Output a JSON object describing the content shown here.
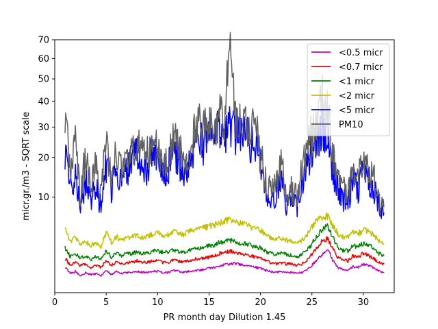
{
  "chart_data": {
    "type": "line",
    "title": "",
    "xlabel": "PR month day  Dilution 1.45",
    "ylabel": "micr.gr./m3 - SQRT scale",
    "y_scale": "sqrt",
    "xlim": [
      0,
      33
    ],
    "ylim": [
      0,
      70
    ],
    "x_ticks": [
      0,
      5,
      10,
      15,
      20,
      25,
      30
    ],
    "y_ticks": [
      10,
      20,
      30,
      40,
      50,
      60,
      70
    ],
    "grid": false,
    "legend_position": "top-right",
    "x": [
      1,
      1.5,
      2,
      2.5,
      3,
      3.5,
      4,
      4.5,
      5,
      5.5,
      6,
      6.5,
      7,
      7.5,
      8,
      8.5,
      9,
      9.5,
      10,
      10.5,
      11,
      11.5,
      12,
      12.5,
      13,
      13.5,
      14,
      14.5,
      15,
      15.5,
      16,
      16.5,
      17,
      17.5,
      18,
      18.5,
      19,
      19.5,
      20,
      20.5,
      21,
      21.5,
      22,
      22.5,
      23,
      23.5,
      24,
      24.5,
      25,
      25.5,
      26,
      26.5,
      27,
      27.5,
      28,
      28.5,
      29,
      29.5,
      30,
      30.5,
      31,
      31.5,
      32
    ],
    "series": [
      {
        "name": "<0.5 micr",
        "color": "#c000c0",
        "values": [
          0.7,
          0.4,
          0.5,
          0.3,
          0.45,
          0.35,
          0.4,
          0.3,
          0.55,
          0.35,
          0.5,
          0.4,
          0.45,
          0.45,
          0.5,
          0.45,
          0.45,
          0.5,
          0.5,
          0.45,
          0.45,
          0.55,
          0.5,
          0.45,
          0.5,
          0.55,
          0.55,
          0.6,
          0.65,
          0.7,
          0.8,
          0.85,
          0.9,
          0.95,
          0.85,
          0.8,
          0.75,
          0.7,
          0.65,
          0.55,
          0.5,
          0.45,
          0.5,
          0.45,
          0.45,
          0.4,
          0.45,
          0.55,
          0.8,
          1.2,
          1.6,
          2.0,
          1.2,
          0.7,
          0.6,
          0.55,
          0.75,
          0.7,
          0.9,
          0.8,
          0.7,
          0.5,
          0.45
        ]
      },
      {
        "name": "<0.7 micr",
        "color": "#ee0000",
        "values": [
          1.3,
          0.8,
          1.0,
          0.8,
          0.9,
          0.7,
          0.8,
          0.7,
          1.1,
          0.8,
          1.0,
          0.9,
          1.0,
          1.0,
          1.1,
          1.0,
          1.0,
          1.1,
          1.1,
          1.0,
          1.0,
          1.2,
          1.1,
          1.0,
          1.1,
          1.2,
          1.3,
          1.3,
          1.4,
          1.5,
          1.7,
          1.8,
          1.9,
          1.8,
          1.7,
          1.6,
          1.5,
          1.4,
          1.3,
          1.1,
          1.0,
          0.9,
          1.0,
          0.9,
          0.9,
          0.8,
          0.9,
          1.1,
          1.6,
          2.3,
          2.9,
          3.3,
          2.2,
          1.4,
          1.2,
          1.1,
          1.5,
          1.4,
          1.7,
          1.5,
          1.3,
          1.0,
          0.9
        ]
      },
      {
        "name": "<1 micr",
        "color": "#008000",
        "values": [
          2.2,
          1.4,
          1.7,
          1.3,
          1.5,
          1.2,
          1.4,
          1.2,
          1.9,
          1.4,
          1.7,
          1.5,
          1.7,
          1.7,
          1.8,
          1.7,
          1.7,
          1.9,
          1.9,
          1.8,
          1.8,
          2.0,
          1.9,
          1.8,
          2.0,
          2.1,
          2.2,
          2.3,
          2.4,
          2.5,
          2.8,
          2.9,
          3.0,
          2.9,
          2.7,
          2.6,
          2.5,
          2.3,
          2.2,
          1.9,
          1.7,
          1.6,
          1.7,
          1.6,
          1.5,
          1.4,
          1.6,
          1.9,
          2.6,
          3.6,
          4.4,
          4.9,
          3.4,
          2.3,
          2.0,
          1.9,
          2.4,
          2.3,
          2.7,
          2.5,
          2.2,
          1.7,
          1.5
        ]
      },
      {
        "name": "<2 micr",
        "color": "#c0c000",
        "values": [
          4.6,
          2.8,
          3.4,
          2.5,
          2.9,
          2.4,
          2.7,
          2.3,
          3.9,
          2.8,
          3.4,
          3.0,
          3.3,
          3.4,
          3.6,
          3.4,
          3.5,
          3.8,
          3.9,
          3.6,
          3.7,
          4.1,
          3.9,
          3.7,
          4.0,
          4.3,
          4.4,
          4.6,
          4.8,
          5.0,
          5.4,
          5.6,
          5.9,
          5.6,
          5.3,
          5.1,
          4.8,
          4.5,
          4.2,
          3.7,
          3.3,
          3.0,
          3.3,
          3.0,
          2.9,
          2.7,
          3.0,
          3.6,
          4.7,
          5.8,
          6.2,
          6.4,
          5.0,
          3.8,
          3.4,
          3.3,
          4.0,
          3.8,
          4.4,
          4.1,
          3.6,
          2.9,
          2.6
        ]
      },
      {
        "name": "<5 micr",
        "color": "#0000ff",
        "values": [
          22,
          11,
          16,
          7,
          14,
          9,
          12,
          8,
          18,
          12,
          17,
          14,
          17,
          19,
          21,
          18,
          17,
          23,
          19,
          16,
          17,
          24,
          20,
          16,
          18,
          23,
          27,
          24,
          29,
          25,
          30,
          27,
          32,
          28,
          26,
          29,
          24,
          25,
          18,
          12,
          10,
          11,
          15,
          9,
          10,
          8,
          13,
          18,
          23,
          26,
          30,
          28,
          17,
          12,
          10,
          9,
          14,
          12,
          16,
          14,
          12,
          8,
          7
        ]
      },
      {
        "name": "PM10",
        "color": "#606060",
        "values": [
          33,
          17,
          24,
          10,
          21,
          13,
          18,
          11,
          24,
          16,
          21,
          17,
          21,
          23,
          26,
          22,
          21,
          27,
          22,
          19,
          20,
          28,
          24,
          19,
          22,
          27,
          33,
          29,
          35,
          30,
          36,
          33,
          63,
          35,
          31,
          34,
          29,
          30,
          21,
          14,
          12,
          13,
          18,
          11,
          12,
          10,
          16,
          22,
          29,
          33,
          42,
          36,
          21,
          14,
          12,
          11,
          17,
          14,
          20,
          17,
          15,
          9,
          8
        ]
      }
    ]
  }
}
